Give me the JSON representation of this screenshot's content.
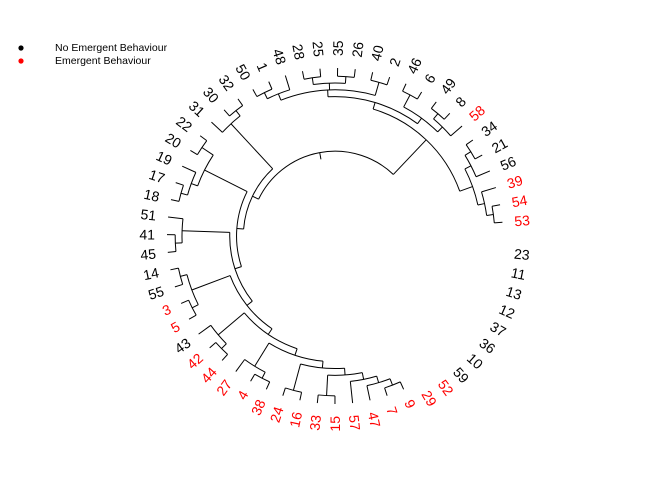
{
  "legend": {
    "items": [
      {
        "label": "No Emergent Behaviour",
        "color": "#000000"
      },
      {
        "label": "Emergent Behaviour",
        "color": "#ff0000"
      }
    ]
  },
  "tree": {
    "type": "circular-dendrogram",
    "tips": [
      {
        "label": "23",
        "color": "#000000"
      },
      {
        "label": "11",
        "color": "#000000"
      },
      {
        "label": "13",
        "color": "#000000"
      },
      {
        "label": "12",
        "color": "#000000"
      },
      {
        "label": "37",
        "color": "#000000"
      },
      {
        "label": "36",
        "color": "#000000"
      },
      {
        "label": "10",
        "color": "#000000"
      },
      {
        "label": "59",
        "color": "#000000"
      },
      {
        "label": "52",
        "color": "#ff0000"
      },
      {
        "label": "29",
        "color": "#ff0000"
      },
      {
        "label": "9",
        "color": "#ff0000"
      },
      {
        "label": "7",
        "color": "#ff0000"
      },
      {
        "label": "47",
        "color": "#ff0000"
      },
      {
        "label": "57",
        "color": "#ff0000"
      },
      {
        "label": "15",
        "color": "#ff0000"
      },
      {
        "label": "33",
        "color": "#ff0000"
      },
      {
        "label": "16",
        "color": "#ff0000"
      },
      {
        "label": "24",
        "color": "#ff0000"
      },
      {
        "label": "38",
        "color": "#ff0000"
      },
      {
        "label": "4",
        "color": "#ff0000"
      },
      {
        "label": "27",
        "color": "#ff0000"
      },
      {
        "label": "44",
        "color": "#ff0000"
      },
      {
        "label": "42",
        "color": "#ff0000"
      },
      {
        "label": "43",
        "color": "#000000"
      },
      {
        "label": "5",
        "color": "#ff0000"
      },
      {
        "label": "3",
        "color": "#ff0000"
      },
      {
        "label": "55",
        "color": "#000000"
      },
      {
        "label": "14",
        "color": "#000000"
      },
      {
        "label": "45",
        "color": "#000000"
      },
      {
        "label": "41",
        "color": "#000000"
      },
      {
        "label": "51",
        "color": "#000000"
      },
      {
        "label": "18",
        "color": "#000000"
      },
      {
        "label": "17",
        "color": "#000000"
      },
      {
        "label": "19",
        "color": "#000000"
      },
      {
        "label": "20",
        "color": "#000000"
      },
      {
        "label": "22",
        "color": "#000000"
      },
      {
        "label": "31",
        "color": "#000000"
      },
      {
        "label": "30",
        "color": "#000000"
      },
      {
        "label": "32",
        "color": "#000000"
      },
      {
        "label": "50",
        "color": "#000000"
      },
      {
        "label": "1",
        "color": "#000000"
      },
      {
        "label": "48",
        "color": "#000000"
      },
      {
        "label": "28",
        "color": "#000000"
      },
      {
        "label": "25",
        "color": "#000000"
      },
      {
        "label": "35",
        "color": "#000000"
      },
      {
        "label": "26",
        "color": "#000000"
      },
      {
        "label": "40",
        "color": "#000000"
      },
      {
        "label": "2",
        "color": "#000000"
      },
      {
        "label": "46",
        "color": "#000000"
      },
      {
        "label": "6",
        "color": "#000000"
      },
      {
        "label": "49",
        "color": "#000000"
      },
      {
        "label": "8",
        "color": "#000000"
      },
      {
        "label": "58",
        "color": "#ff0000"
      },
      {
        "label": "34",
        "color": "#000000"
      },
      {
        "label": "21",
        "color": "#000000"
      },
      {
        "label": "56",
        "color": "#000000"
      },
      {
        "label": "39",
        "color": "#ff0000"
      },
      {
        "label": "54",
        "color": "#ff0000"
      },
      {
        "label": "53",
        "color": "#ff0000"
      }
    ],
    "newick": "((((((53,54),39),(56,(21,34))),(((58,(8,49)),(6,46)),((2,40),((26,35),(25,28)),(48,(1,50))))),(((32,30),31),(((22,20),(19,(17,18))),((51,(41,45)),(((14,55),(3,5)),((43,(42,44)),((27,(4,38)),((24,16),((33,15),(57,(47,(7,9))))))))))))),(((52,29),(59,(10,(36,(37,(12,13)))))),(11,23)));"
  }
}
